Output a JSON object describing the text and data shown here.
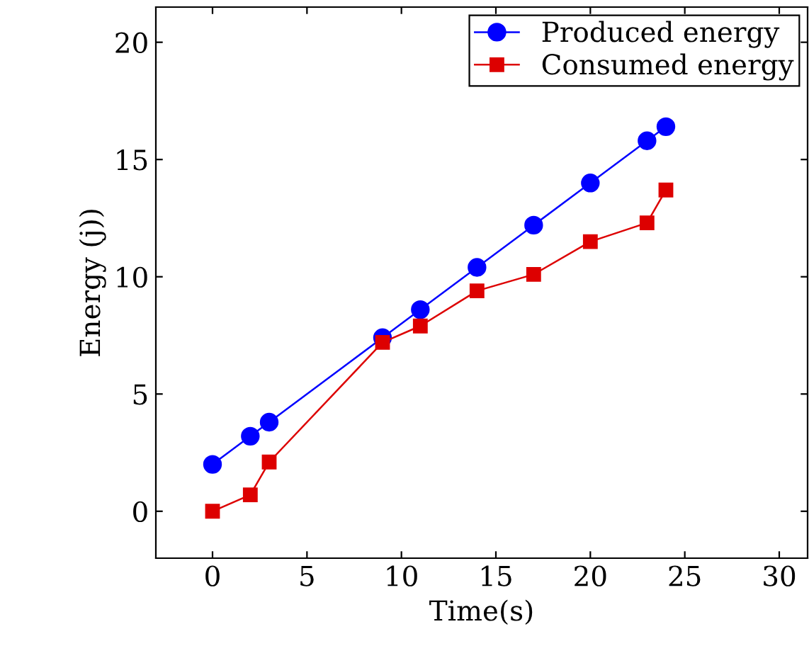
{
  "chart_data": {
    "type": "line",
    "xlabel": "Time(s)",
    "ylabel": "Energy (j))",
    "xlim": [
      -3,
      31.5
    ],
    "ylim": [
      -2,
      21.5
    ],
    "xticks": [
      0,
      5,
      10,
      15,
      20,
      25,
      30
    ],
    "yticks": [
      0,
      5,
      10,
      15,
      20
    ],
    "legend": "top right",
    "grid": false,
    "series": [
      {
        "name": "Produced energy",
        "color": "#0000ff",
        "marker": "circle",
        "x": [
          0,
          2,
          3,
          9,
          11,
          14,
          17,
          20,
          23,
          24
        ],
        "values": [
          2,
          3.2,
          3.8,
          7.4,
          8.6,
          10.4,
          12.2,
          14,
          15.8,
          16.4
        ]
      },
      {
        "name": "Consumed energy",
        "color": "#dd0000",
        "marker": "square",
        "x": [
          0,
          2,
          3,
          9,
          11,
          14,
          17,
          20,
          23,
          24
        ],
        "values": [
          0,
          0.7,
          2.1,
          7.2,
          7.9,
          9.4,
          10.1,
          11.5,
          12.3,
          13.7
        ]
      }
    ]
  }
}
